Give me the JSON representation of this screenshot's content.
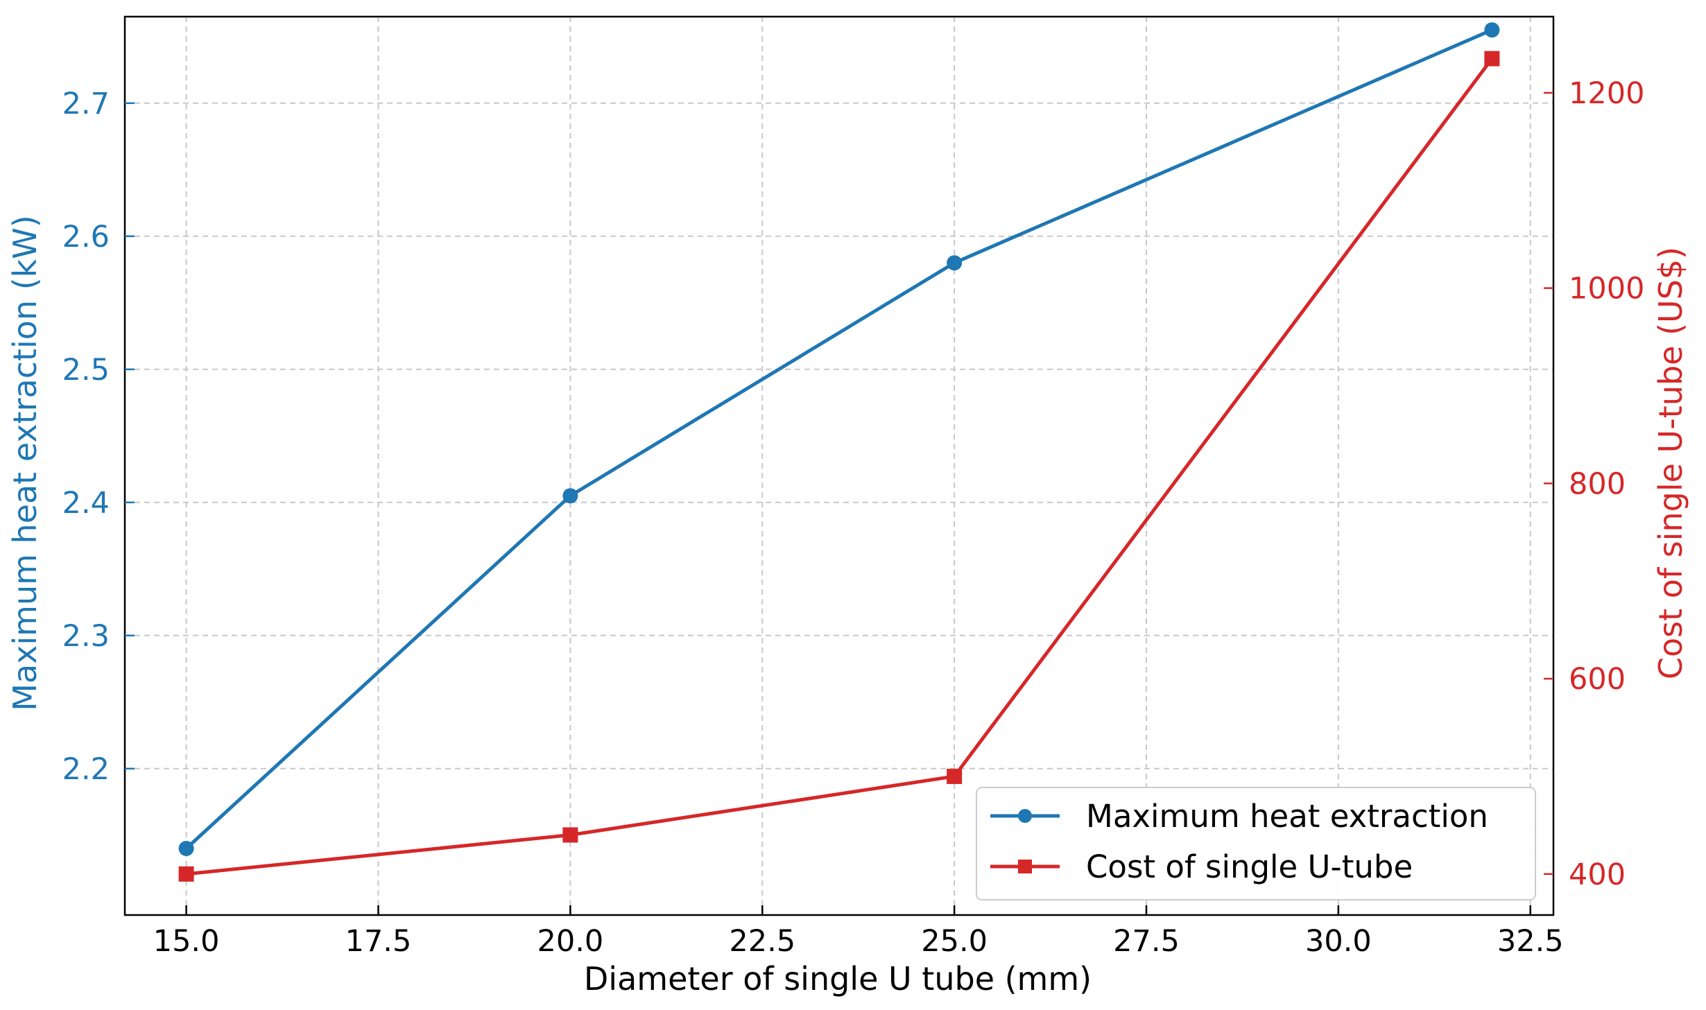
{
  "chart_data": {
    "type": "line",
    "title": "",
    "xlabel": "Diameter of single U tube (mm)",
    "ylabel_left": "Maximum heat extraction (kW)",
    "ylabel_right": "Cost of single U-tube (US$)",
    "xlim": [
      14.2,
      32.8
    ],
    "ylim_left": [
      2.09,
      2.765
    ],
    "ylim_right": [
      358,
      1278
    ],
    "x_ticks": [
      15.0,
      17.5,
      20.0,
      22.5,
      25.0,
      27.5,
      30.0,
      32.5
    ],
    "x_tick_labels": [
      "15.0",
      "17.5",
      "20.0",
      "22.5",
      "25.0",
      "27.5",
      "30.0",
      "32.5"
    ],
    "y_left_ticks": [
      2.2,
      2.3,
      2.4,
      2.5,
      2.6,
      2.7
    ],
    "y_left_tick_labels": [
      "2.2",
      "2.3",
      "2.4",
      "2.5",
      "2.6",
      "2.7"
    ],
    "y_right_ticks": [
      400,
      600,
      800,
      1000,
      1200
    ],
    "y_right_tick_labels": [
      "400",
      "600",
      "800",
      "1000",
      "1200"
    ],
    "grid": true,
    "legend_position": "lower-right",
    "series": [
      {
        "name": "Maximum heat extraction",
        "axis": "left",
        "color": "#1f77b4",
        "marker": "circle",
        "x": [
          15,
          20,
          25,
          32
        ],
        "y": [
          2.14,
          2.405,
          2.58,
          2.755
        ]
      },
      {
        "name": "Cost of single U-tube",
        "axis": "right",
        "color": "#d62728",
        "marker": "square",
        "x": [
          15,
          20,
          25,
          32
        ],
        "y": [
          400,
          440,
          500,
          1235
        ]
      }
    ]
  }
}
